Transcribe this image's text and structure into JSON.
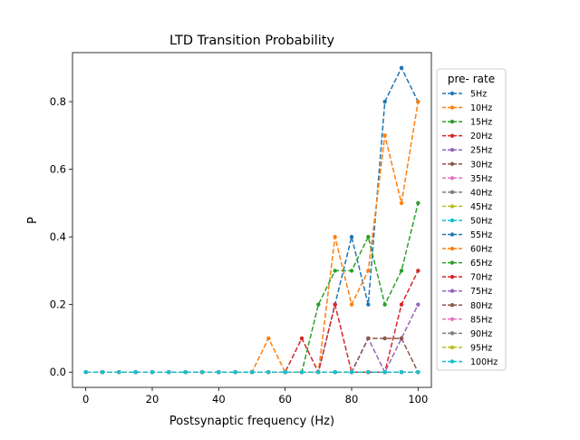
{
  "chart_data": {
    "type": "line",
    "title": "LTD Transition Probability",
    "xlabel": "Postsynaptic frequency (Hz)",
    "ylabel": "P",
    "xlim": [
      -4,
      104
    ],
    "ylim": [
      -0.045,
      0.945
    ],
    "xticks": [
      0,
      20,
      40,
      60,
      80,
      100
    ],
    "yticks": [
      0.0,
      0.2,
      0.4,
      0.6,
      0.8
    ],
    "grid": false,
    "legend": {
      "title": "pre- rate",
      "placement": "outside right"
    },
    "x": [
      0,
      5,
      10,
      15,
      20,
      25,
      30,
      35,
      40,
      45,
      50,
      55,
      60,
      65,
      70,
      75,
      80,
      85,
      90,
      95,
      100
    ],
    "series": [
      {
        "name": "5Hz",
        "color": "#1f77b4",
        "values": [
          0,
          0,
          0,
          0,
          0,
          0,
          0,
          0,
          0,
          0,
          0,
          0,
          0,
          0,
          0,
          0,
          0,
          0,
          0,
          0,
          0
        ]
      },
      {
        "name": "10Hz",
        "color": "#ff7f0e",
        "values": [
          0,
          0,
          0,
          0,
          0,
          0,
          0,
          0,
          0,
          0,
          0,
          0,
          0,
          0,
          0,
          0,
          0,
          0,
          0,
          0,
          0
        ]
      },
      {
        "name": "15Hz",
        "color": "#2ca02c",
        "values": [
          0,
          0,
          0,
          0,
          0,
          0,
          0,
          0,
          0,
          0,
          0,
          0,
          0,
          0,
          0,
          0,
          0,
          0,
          0,
          0,
          0
        ]
      },
      {
        "name": "20Hz",
        "color": "#d62728",
        "values": [
          0,
          0,
          0,
          0,
          0,
          0,
          0,
          0,
          0,
          0,
          0,
          0,
          0,
          0,
          0,
          0,
          0,
          0,
          0,
          0,
          0
        ]
      },
      {
        "name": "25Hz",
        "color": "#9467bd",
        "values": [
          0,
          0,
          0,
          0,
          0,
          0,
          0,
          0,
          0,
          0,
          0,
          0,
          0,
          0,
          0,
          0,
          0,
          0,
          0,
          0,
          0
        ]
      },
      {
        "name": "30Hz",
        "color": "#8c564b",
        "values": [
          0,
          0,
          0,
          0,
          0,
          0,
          0,
          0,
          0,
          0,
          0,
          0,
          0,
          0,
          0,
          0,
          0,
          0,
          0,
          0,
          0
        ]
      },
      {
        "name": "35Hz",
        "color": "#e377c2",
        "values": [
          0,
          0,
          0,
          0,
          0,
          0,
          0,
          0,
          0,
          0,
          0,
          0,
          0,
          0,
          0,
          0,
          0,
          0,
          0,
          0,
          0
        ]
      },
      {
        "name": "40Hz",
        "color": "#7f7f7f",
        "values": [
          0,
          0,
          0,
          0,
          0,
          0,
          0,
          0,
          0,
          0,
          0,
          0,
          0,
          0,
          0,
          0,
          0,
          0,
          0,
          0,
          0
        ]
      },
      {
        "name": "45Hz",
        "color": "#bcbd22",
        "values": [
          0,
          0,
          0,
          0,
          0,
          0,
          0,
          0,
          0,
          0,
          0,
          0,
          0,
          0,
          0,
          0,
          0,
          0,
          0,
          0,
          0
        ]
      },
      {
        "name": "50Hz",
        "color": "#17becf",
        "values": [
          0,
          0,
          0,
          0,
          0,
          0,
          0,
          0,
          0,
          0,
          0,
          0,
          0,
          0,
          0,
          0,
          0,
          0,
          0,
          0,
          0
        ]
      },
      {
        "name": "55Hz",
        "color": "#1f77b4",
        "values": [
          0,
          0,
          0,
          0,
          0,
          0,
          0,
          0,
          0,
          0,
          0,
          0,
          0,
          0,
          0,
          0.2,
          0.4,
          0.2,
          0.8,
          0.9,
          0.8
        ]
      },
      {
        "name": "60Hz",
        "color": "#ff7f0e",
        "values": [
          0,
          0,
          0,
          0,
          0,
          0,
          0,
          0,
          0,
          0,
          0,
          0.1,
          0,
          0,
          0,
          0.4,
          0.2,
          0.3,
          0.7,
          0.5,
          0.8
        ]
      },
      {
        "name": "65Hz",
        "color": "#2ca02c",
        "values": [
          0,
          0,
          0,
          0,
          0,
          0,
          0,
          0,
          0,
          0,
          0,
          0,
          0,
          0,
          0.2,
          0.3,
          0.3,
          0.4,
          0.2,
          0.3,
          0.5
        ]
      },
      {
        "name": "70Hz",
        "color": "#d62728",
        "values": [
          0,
          0,
          0,
          0,
          0,
          0,
          0,
          0,
          0,
          0,
          0,
          0,
          0,
          0.1,
          0,
          0.2,
          0,
          0,
          0,
          0.2,
          0.3
        ]
      },
      {
        "name": "75Hz",
        "color": "#9467bd",
        "values": [
          0,
          0,
          0,
          0,
          0,
          0,
          0,
          0,
          0,
          0,
          0,
          0,
          0,
          0,
          0,
          0,
          0,
          0.1,
          0,
          0.1,
          0.2
        ]
      },
      {
        "name": "80Hz",
        "color": "#8c564b",
        "values": [
          0,
          0,
          0,
          0,
          0,
          0,
          0,
          0,
          0,
          0,
          0,
          0,
          0,
          0,
          0,
          0,
          0,
          0.1,
          0.1,
          0.1,
          0
        ]
      },
      {
        "name": "85Hz",
        "color": "#e377c2",
        "values": [
          0,
          0,
          0,
          0,
          0,
          0,
          0,
          0,
          0,
          0,
          0,
          0,
          0,
          0,
          0,
          0,
          0,
          0,
          0,
          0,
          0
        ]
      },
      {
        "name": "90Hz",
        "color": "#7f7f7f",
        "values": [
          0,
          0,
          0,
          0,
          0,
          0,
          0,
          0,
          0,
          0,
          0,
          0,
          0,
          0,
          0,
          0,
          0,
          0,
          0,
          0,
          0
        ]
      },
      {
        "name": "95Hz",
        "color": "#bcbd22",
        "values": [
          0,
          0,
          0,
          0,
          0,
          0,
          0,
          0,
          0,
          0,
          0,
          0,
          0,
          0,
          0,
          0,
          0,
          0,
          0,
          0,
          0
        ]
      },
      {
        "name": "100Hz",
        "color": "#17becf",
        "values": [
          0,
          0,
          0,
          0,
          0,
          0,
          0,
          0,
          0,
          0,
          0,
          0,
          0,
          0,
          0,
          0,
          0,
          0,
          0,
          0,
          0
        ]
      }
    ]
  }
}
